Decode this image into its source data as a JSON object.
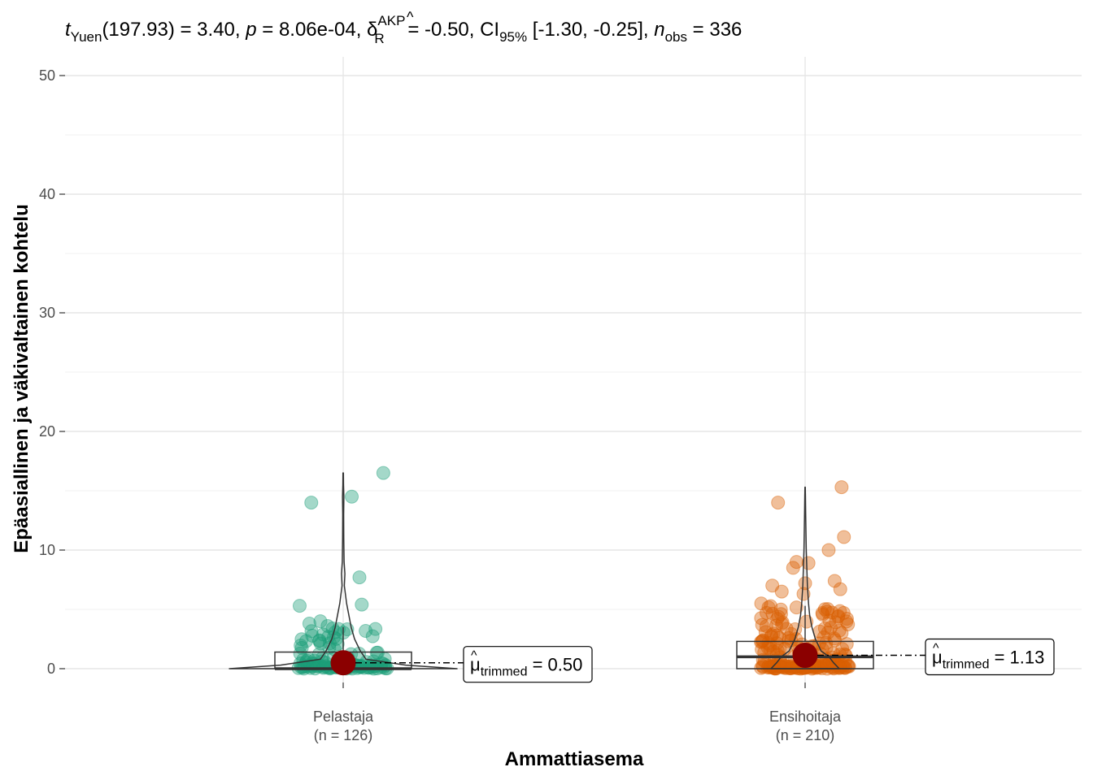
{
  "chart_data": {
    "type": "violin-box-scatter",
    "subtitle": {
      "t_label": "t",
      "t_sub": "Yuen",
      "df": "(197.93)",
      "eq1": " = 3.40, ",
      "p_label": "p",
      "p_value": " = 8.06e-04, ",
      "delta": "δ",
      "delta_sup": "AKP",
      "delta_sub": "R",
      "delta_value": " = -0.50, CI",
      "ci_sub": "95%",
      "ci_value": " [-1.30, -0.25], ",
      "n_label": "n",
      "n_sub": "obs",
      "n_value": " = 336"
    },
    "xlabel": "Ammattiasema",
    "ylabel": "Epäasiallinen ja väkivaltainen kohtelu",
    "ylim": [
      0,
      50
    ],
    "yticks": [
      "0",
      "10",
      "20",
      "30",
      "40",
      "50"
    ],
    "grid": true,
    "groups": [
      {
        "name": "Pelastaja",
        "n_label": "(n = 126)",
        "color": "#1b9e77",
        "trimmed_mean": 0.5,
        "mean_label_mu": "μ",
        "mean_label_sub": "trimmed",
        "mean_label_value": " = 0.50",
        "box": {
          "q1": 0,
          "median": 0,
          "q3": 1.4,
          "whisker_low": 0,
          "whisker_high": 3.5
        },
        "outliers": [
          16.5,
          14.5,
          14.0,
          7.7,
          5.4,
          5.3,
          4.0,
          3.8,
          3.6
        ],
        "violin": [
          [
            0,
            1.0
          ],
          [
            0.3,
            0.55
          ],
          [
            0.8,
            0.2
          ],
          [
            1.5,
            0.15
          ],
          [
            2.5,
            0.1
          ],
          [
            3.5,
            0.07
          ],
          [
            4.5,
            0.05
          ],
          [
            5.5,
            0.03
          ],
          [
            7,
            0.01
          ],
          [
            8,
            0.015
          ],
          [
            9,
            0.008
          ],
          [
            11,
            0.005
          ],
          [
            13,
            0.004
          ],
          [
            14.5,
            0.006
          ],
          [
            15.5,
            0.003
          ],
          [
            16.5,
            0.002
          ]
        ]
      },
      {
        "name": "Ensihoitaja",
        "n_label": "(n = 210)",
        "color": "#d95f02",
        "trimmed_mean": 1.13,
        "mean_label_mu": "μ",
        "mean_label_sub": "trimmed",
        "mean_label_value": " = 1.13",
        "box": {
          "q1": 0,
          "median": 1.0,
          "q3": 2.3,
          "whisker_low": 0,
          "whisker_high": 5.3
        },
        "outliers": [
          15.3,
          14.0,
          11.1,
          10.0,
          9.0,
          8.9,
          8.5,
          7.4,
          7.2,
          7.0,
          6.7,
          6.5,
          6.3,
          5.5
        ],
        "violin": [
          [
            0,
            0.6
          ],
          [
            0.5,
            0.5
          ],
          [
            1,
            0.42
          ],
          [
            1.5,
            0.28
          ],
          [
            2.5,
            0.18
          ],
          [
            3.5,
            0.12
          ],
          [
            4.5,
            0.08
          ],
          [
            5.5,
            0.06
          ],
          [
            7,
            0.04
          ],
          [
            8.5,
            0.03
          ],
          [
            10,
            0.02
          ],
          [
            11.5,
            0.015
          ],
          [
            13,
            0.01
          ],
          [
            14.5,
            0.006
          ],
          [
            15.3,
            0.003
          ]
        ]
      }
    ]
  }
}
